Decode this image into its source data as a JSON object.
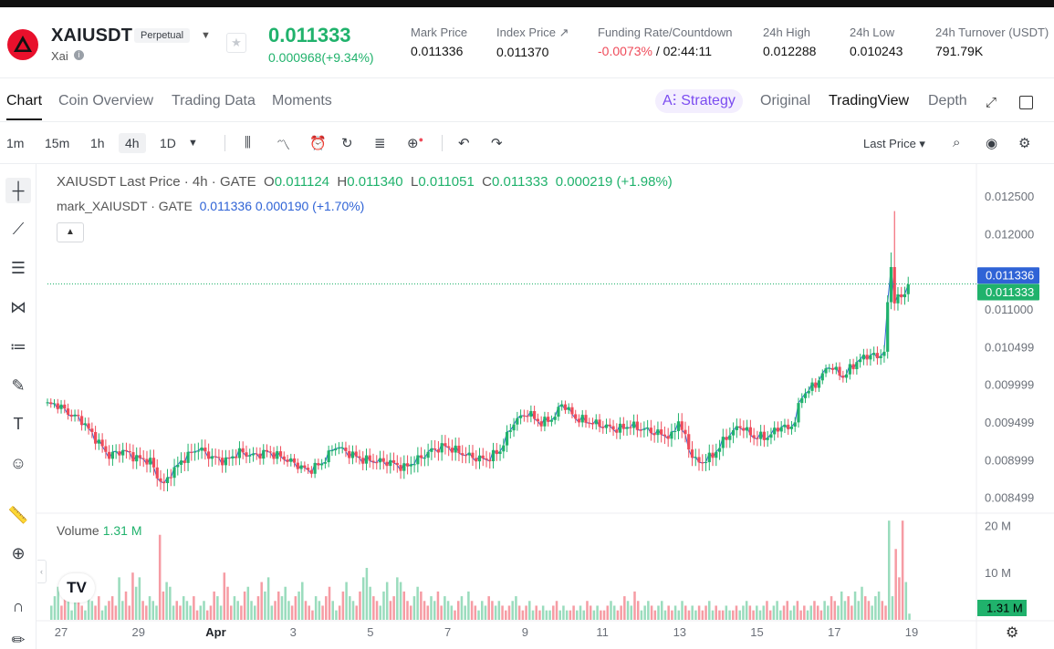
{
  "header": {
    "symbol": "XAIUSDT",
    "badge": "Perpetual",
    "subname": "Xai",
    "last_price": "0.011333",
    "change": "0.000968(+9.34%)",
    "stats": [
      {
        "label": "Mark Price",
        "value": "0.011336"
      },
      {
        "label": "Index Price ↗",
        "value": "0.011370"
      },
      {
        "label": "Funding Rate/Countdown",
        "value_neg": "-0.0073%",
        "value_rest": " / 02:44:11"
      },
      {
        "label": "24h High",
        "value": "0.012288"
      },
      {
        "label": "24h Low",
        "value": "0.010243"
      },
      {
        "label": "24h Turnover (USDT)",
        "value": "791.79K"
      }
    ],
    "colors": {
      "up": "#20b26c",
      "down": "#ef4b5a",
      "brand": "#e8102c"
    }
  },
  "tabs": [
    "Chart",
    "Coin Overview",
    "Trading Data",
    "Moments"
  ],
  "view_tabs": {
    "strategy": "Strategy",
    "original": "Original",
    "tradingview": "TradingView",
    "depth": "Depth"
  },
  "intervals": [
    "1m",
    "15m",
    "1h",
    "4h",
    "1D"
  ],
  "active_interval": "4h",
  "toolbar": {
    "price_type": "Last Price"
  },
  "left_tools": [
    "crosshair-icon",
    "trend-line-icon",
    "horizontal-lines-icon",
    "pattern-icon",
    "fib-icon",
    "brush-icon",
    "text-icon",
    "emoji-icon",
    "ruler-icon",
    "zoom-in-icon",
    "magnet-icon",
    "pencil-icon"
  ],
  "legend": {
    "title": "XAIUSDT Last Price · 4h · GATE",
    "o": "0.011124",
    "h": "0.011340",
    "l": "0.011051",
    "c": "0.011333",
    "chg": "0.000219 (+1.98%)"
  },
  "legend2": {
    "name": "mark_XAIUSDT · GATE",
    "value": "0.011336 0.000190 (+1.70%)"
  },
  "volume": {
    "label": "Volume",
    "value": "1.31 M"
  },
  "chart_data": {
    "type": "candlestick",
    "y_ticks": [
      "0.012500",
      "0.012000",
      "0.011000",
      "0.010499",
      "0.009999",
      "0.009499",
      "0.008999",
      "0.008499"
    ],
    "ylim": [
      0.0083,
      0.0129
    ],
    "volume_ticks": [
      "20 M",
      "10 M"
    ],
    "volume_max": 22,
    "x_ticks": [
      "27",
      "29",
      "Apr",
      "3",
      "5",
      "7",
      "9",
      "11",
      "13",
      "15",
      "17",
      "19"
    ],
    "price_labels": [
      {
        "text": "0.011336",
        "value": 0.011336,
        "color": "#2f63d6"
      },
      {
        "text": "0.011333",
        "value": 0.011333,
        "color": "#20b26c"
      }
    ],
    "volume_label": {
      "text": "1.31 M",
      "value": 1.31
    },
    "close_path": [
      [
        0.0097,
        0.00976
      ],
      [
        3,
        0.00973
      ],
      [
        6,
        0.00962
      ],
      [
        10,
        0.00952
      ],
      [
        14,
        0.00928
      ],
      [
        18,
        0.00905
      ],
      [
        22,
        0.00912
      ],
      [
        26,
        0.00902
      ],
      [
        30,
        0.00898
      ],
      [
        32,
        0.00878
      ],
      [
        34,
        0.00866
      ],
      [
        36,
        0.00882
      ],
      [
        40,
        0.00902
      ],
      [
        44,
        0.00915
      ],
      [
        48,
        0.00903
      ],
      [
        52,
        0.00898
      ],
      [
        56,
        0.0091
      ],
      [
        60,
        0.00905
      ],
      [
        64,
        0.0091
      ],
      [
        68,
        0.00904
      ],
      [
        72,
        0.00895
      ],
      [
        76,
        0.00885
      ],
      [
        80,
        0.00895
      ],
      [
        84,
        0.00918
      ],
      [
        88,
        0.00908
      ],
      [
        92,
        0.009
      ],
      [
        96,
        0.00898
      ],
      [
        100,
        0.00896
      ],
      [
        104,
        0.00889
      ],
      [
        108,
        0.009
      ],
      [
        112,
        0.00912
      ],
      [
        116,
        0.00918
      ],
      [
        120,
        0.0091
      ],
      [
        124,
        0.00903
      ],
      [
        128,
        0.009
      ],
      [
        132,
        0.00912
      ],
      [
        136,
        0.0095
      ],
      [
        140,
        0.00962
      ],
      [
        144,
        0.00948
      ],
      [
        148,
        0.00957
      ],
      [
        150,
        0.00975
      ],
      [
        154,
        0.00955
      ],
      [
        158,
        0.0095
      ],
      [
        162,
        0.00945
      ],
      [
        166,
        0.0094
      ],
      [
        170,
        0.00945
      ],
      [
        174,
        0.0094
      ],
      [
        178,
        0.00935
      ],
      [
        182,
        0.0093
      ],
      [
        184,
        0.00952
      ],
      [
        188,
        0.00905
      ],
      [
        190,
        0.00895
      ],
      [
        194,
        0.00905
      ],
      [
        198,
        0.0093
      ],
      [
        202,
        0.00945
      ],
      [
        206,
        0.0093
      ],
      [
        210,
        0.0093
      ],
      [
        214,
        0.00945
      ],
      [
        216,
        0.0094
      ],
      [
        218,
        0.00952
      ],
      [
        220,
        0.00985
      ],
      [
        224,
        0.01
      ],
      [
        228,
        0.01025
      ],
      [
        232,
        0.0101
      ],
      [
        236,
        0.0103
      ],
      [
        240,
        0.0104
      ],
      [
        242,
        0.01035
      ],
      [
        244,
        0.01045
      ],
      [
        246,
        0.0116
      ],
      [
        247,
        0.01108
      ],
      [
        248,
        0.0112
      ],
      [
        249,
        0.0111
      ],
      [
        250,
        0.01125
      ],
      [
        251,
        0.01133
      ]
    ],
    "volume_values": [
      3,
      5,
      7,
      3,
      6,
      4,
      2,
      4,
      5,
      3,
      2,
      6,
      4,
      3,
      5,
      2,
      3,
      4,
      5,
      3,
      9,
      4,
      6,
      3,
      10,
      7,
      9,
      4,
      3,
      5,
      4,
      3,
      18,
      6,
      8,
      7,
      3,
      4,
      3,
      5,
      4,
      3,
      5,
      2,
      3,
      4,
      2,
      3,
      6,
      5,
      3,
      10,
      7,
      3,
      5,
      4,
      3,
      6,
      7,
      4,
      3,
      5,
      8,
      6,
      9,
      3,
      4,
      6,
      5,
      7,
      4,
      3,
      5,
      6,
      8,
      4,
      3,
      2,
      5,
      4,
      3,
      5,
      7,
      4,
      2,
      3,
      6,
      8,
      5,
      4,
      3,
      6,
      9,
      11,
      7,
      5,
      4,
      3,
      6,
      8,
      4,
      5,
      9,
      8,
      6,
      4,
      3,
      5,
      7,
      6,
      4,
      3,
      5,
      4,
      6,
      3,
      5,
      4,
      3,
      2,
      4,
      5,
      3,
      6,
      4,
      3,
      2,
      4,
      3,
      5,
      4,
      3,
      4,
      3,
      2,
      3,
      4,
      5,
      3,
      2,
      3,
      4,
      2,
      3,
      2,
      3,
      2,
      2,
      3,
      4,
      2,
      3,
      2,
      2,
      3,
      2,
      3,
      2,
      4,
      3,
      2,
      3,
      2,
      2,
      3,
      4,
      3,
      2,
      3,
      5,
      4,
      3,
      6,
      4,
      2,
      3,
      4,
      3,
      2,
      3,
      4,
      2,
      3,
      2,
      3,
      2,
      4,
      3,
      2,
      3,
      2,
      3,
      2,
      3,
      4,
      2,
      3,
      2,
      2,
      3,
      2,
      2,
      3,
      2,
      3,
      4,
      3,
      2,
      3,
      2,
      3,
      4,
      2,
      3,
      4,
      2,
      3,
      4,
      2,
      3,
      4,
      2,
      3,
      2,
      3,
      4,
      3,
      2,
      4,
      3,
      5,
      4,
      3,
      6,
      4,
      5,
      3,
      6,
      4,
      7,
      5,
      4,
      3,
      5,
      6,
      4,
      3,
      21,
      5,
      15,
      9,
      21,
      8,
      1.31
    ]
  }
}
